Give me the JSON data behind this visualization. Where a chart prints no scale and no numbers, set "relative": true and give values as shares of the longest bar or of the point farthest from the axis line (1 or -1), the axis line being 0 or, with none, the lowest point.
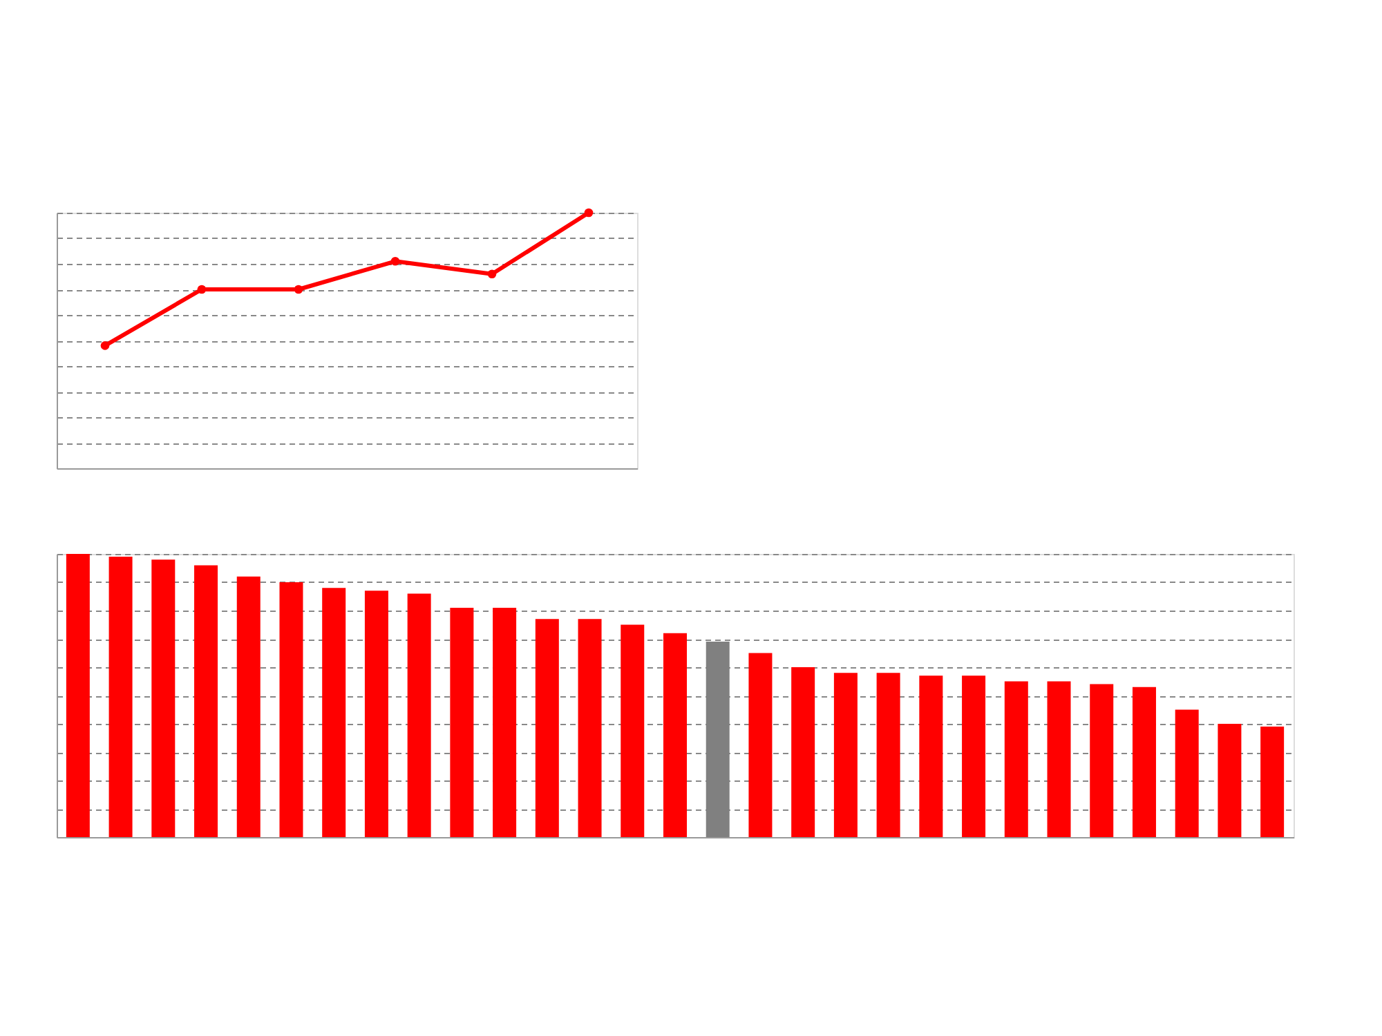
{
  "chart_data": [
    {
      "type": "line",
      "categories": [
        null,
        null,
        null,
        null,
        null,
        null
      ],
      "relative": true,
      "marker": "circle",
      "line_style": "solid",
      "grid": "y",
      "series": [
        {
          "color": "#ff0000",
          "values": [
            0.48,
            0.7,
            0.7,
            0.81,
            0.76,
            1
          ]
        }
      ]
    },
    {
      "type": "bar",
      "categories": [
        null,
        null,
        null,
        null,
        null,
        null,
        null,
        null,
        null,
        null,
        null,
        null,
        null,
        null,
        null,
        null,
        null,
        null,
        null,
        null,
        null,
        null,
        null,
        null,
        null,
        null,
        null,
        null,
        null
      ],
      "relative": true,
      "grid": "y",
      "values": [
        1,
        0.99,
        0.98,
        0.96,
        0.92,
        0.9,
        0.88,
        0.87,
        0.86,
        0.81,
        0.81,
        0.77,
        0.77,
        0.75,
        0.72,
        0.69,
        0.65,
        0.6,
        0.58,
        0.58,
        0.57,
        0.57,
        0.55,
        0.55,
        0.54,
        0.53,
        0.45,
        0.4,
        0.39
      ],
      "colors": [
        "#ff0000",
        "#ff0000",
        "#ff0000",
        "#ff0000",
        "#ff0000",
        "#ff0000",
        "#ff0000",
        "#ff0000",
        "#ff0000",
        "#ff0000",
        "#ff0000",
        "#ff0000",
        "#ff0000",
        "#ff0000",
        "#ff0000",
        "#808080",
        "#ff0000",
        "#ff0000",
        "#ff0000",
        "#ff0000",
        "#ff0000",
        "#ff0000",
        "#ff0000",
        "#ff0000",
        "#ff0000",
        "#ff0000",
        "#ff0000",
        "#ff0000",
        "#ff0000"
      ]
    }
  ]
}
